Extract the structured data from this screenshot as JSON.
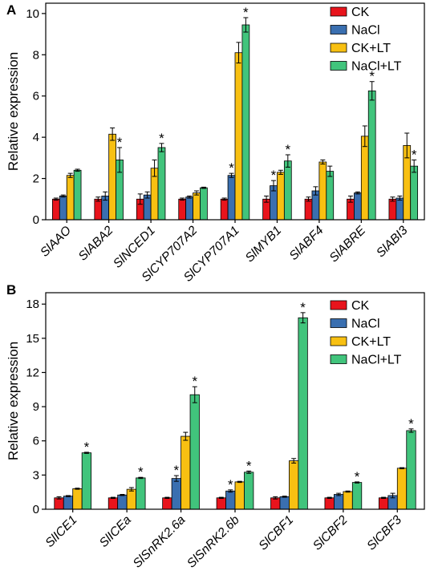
{
  "chart_data": [
    {
      "type": "bar",
      "panel_label": "A",
      "ylabel": "Relative expression",
      "ylim": [
        0,
        10.5
      ],
      "yticks": [
        0,
        2,
        4,
        6,
        8,
        10
      ],
      "ytick_labels": [
        "0",
        "2",
        "4",
        "6",
        "8",
        "10"
      ],
      "categories": [
        "SlAAO",
        "SlABA2",
        "SlNCED1",
        "SlCYP707A2",
        "SlCYP707A1",
        "SlMYB1",
        "SlABF4",
        "SlABRE",
        "SlABI3"
      ],
      "series": [
        {
          "name": "CK",
          "color": "#e8141c",
          "values": [
            1.0,
            1.0,
            1.0,
            1.0,
            1.0,
            1.0,
            1.0,
            1.0,
            1.0
          ],
          "errors": [
            0.05,
            0.1,
            0.25,
            0.05,
            0.05,
            0.15,
            0.1,
            0.15,
            0.1
          ],
          "stars": [
            false,
            false,
            false,
            false,
            false,
            false,
            false,
            false,
            false
          ]
        },
        {
          "name": "NaCl",
          "color": "#3a6fb0",
          "values": [
            1.15,
            1.15,
            1.2,
            1.1,
            2.15,
            1.65,
            1.4,
            1.3,
            1.05
          ],
          "errors": [
            0.05,
            0.2,
            0.15,
            0.05,
            0.1,
            0.25,
            0.2,
            0.05,
            0.1
          ],
          "stars": [
            false,
            false,
            false,
            false,
            true,
            true,
            false,
            false,
            false
          ]
        },
        {
          "name": "CK+LT",
          "color": "#f8c012",
          "values": [
            2.15,
            4.15,
            2.5,
            1.3,
            8.1,
            2.3,
            2.8,
            4.05,
            3.6
          ],
          "errors": [
            0.1,
            0.3,
            0.4,
            0.1,
            0.5,
            0.1,
            0.1,
            0.5,
            0.6
          ],
          "stars": [
            false,
            false,
            false,
            false,
            false,
            false,
            false,
            false,
            false
          ]
        },
        {
          "name": "NaCl+LT",
          "color": "#41c47c",
          "values": [
            2.4,
            2.9,
            3.5,
            1.55,
            9.45,
            2.85,
            2.35,
            6.25,
            2.6
          ],
          "errors": [
            0.05,
            0.6,
            0.2,
            0.03,
            0.35,
            0.3,
            0.25,
            0.45,
            0.3
          ],
          "stars": [
            false,
            true,
            true,
            false,
            true,
            true,
            false,
            true,
            true
          ]
        }
      ],
      "star_symbol": "*",
      "legend_position": "top-right"
    },
    {
      "type": "bar",
      "panel_label": "B",
      "ylabel": "Relative expression",
      "ylim": [
        0,
        19
      ],
      "yticks": [
        0,
        3,
        6,
        9,
        12,
        15,
        18
      ],
      "ytick_labels": [
        "0",
        "3",
        "6",
        "9",
        "12",
        "15",
        "18"
      ],
      "categories": [
        "SlICE1",
        "SlICEa",
        "SlSnRK2.6a",
        "SlSnRK2.6b",
        "SlCBF1",
        "SlCBF2",
        "SlCBF3"
      ],
      "series": [
        {
          "name": "CK",
          "color": "#e8141c",
          "values": [
            1.0,
            1.0,
            1.0,
            1.0,
            1.0,
            1.0,
            1.0
          ],
          "errors": [
            0.1,
            0.05,
            0.05,
            0.05,
            0.1,
            0.05,
            0.05
          ],
          "stars": [
            false,
            false,
            false,
            false,
            false,
            false,
            false
          ]
        },
        {
          "name": "NaCl",
          "color": "#3a6fb0",
          "values": [
            1.15,
            1.25,
            2.7,
            1.6,
            1.1,
            1.3,
            1.2
          ],
          "errors": [
            0.05,
            0.05,
            0.25,
            0.1,
            0.05,
            0.1,
            0.2
          ],
          "stars": [
            false,
            false,
            true,
            true,
            false,
            false,
            false
          ]
        },
        {
          "name": "CK+LT",
          "color": "#f8c012",
          "values": [
            1.8,
            1.75,
            6.4,
            2.4,
            4.25,
            1.55,
            3.6
          ],
          "errors": [
            0.05,
            0.15,
            0.35,
            0.05,
            0.2,
            0.05,
            0.05
          ],
          "stars": [
            false,
            false,
            false,
            false,
            false,
            false,
            false
          ]
        },
        {
          "name": "NaCl+LT",
          "color": "#41c47c",
          "values": [
            4.95,
            2.75,
            10.05,
            3.25,
            16.8,
            2.35,
            6.9
          ],
          "errors": [
            0.05,
            0.05,
            0.7,
            0.1,
            0.45,
            0.05,
            0.15
          ],
          "stars": [
            true,
            true,
            true,
            true,
            true,
            true,
            true
          ]
        }
      ],
      "star_symbol": "*",
      "legend_position": "top-right"
    }
  ]
}
